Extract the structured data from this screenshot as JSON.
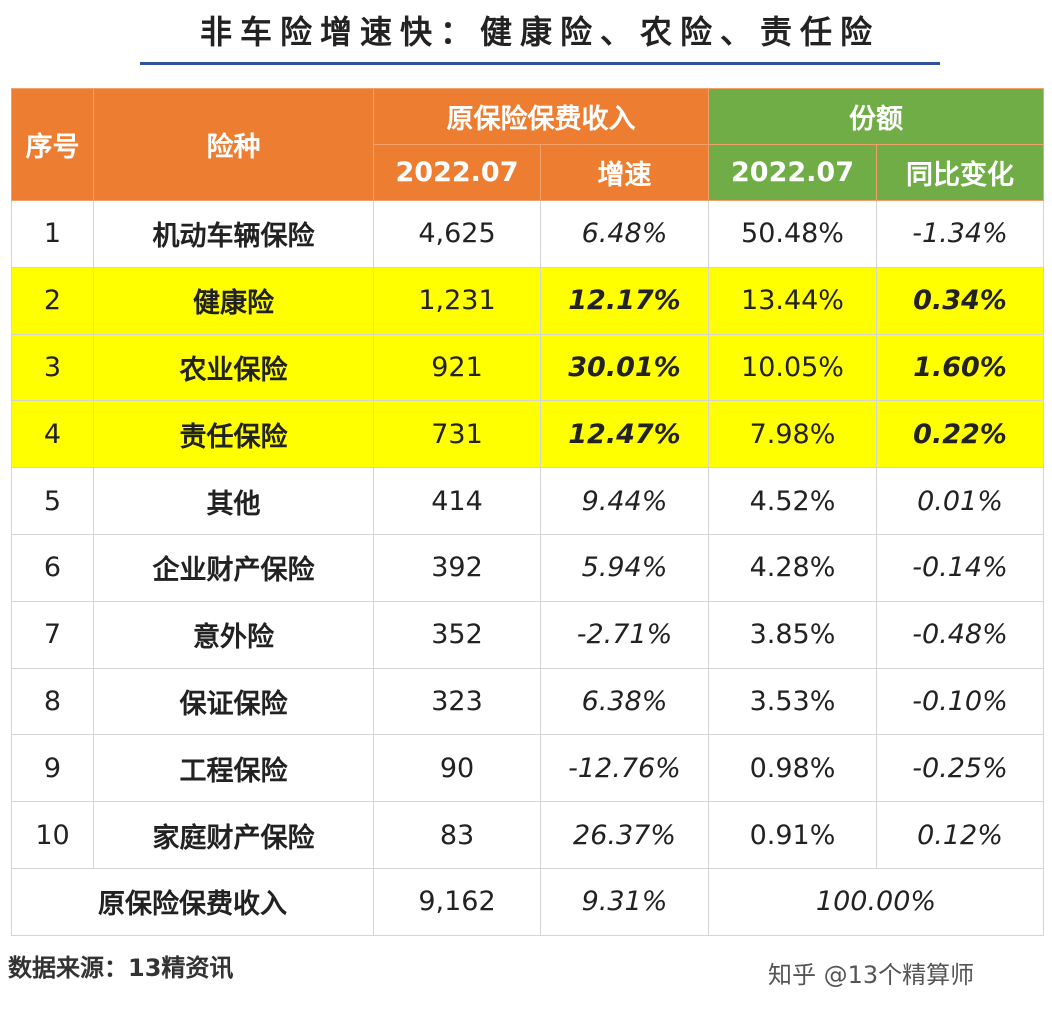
{
  "title": "非车险增速快：健康险、农险、责任险",
  "header": {
    "seq": "序号",
    "type": "险种",
    "premium_group": "原保险保费收入",
    "share_group": "份额",
    "premium_year": "2022.07",
    "growth": "增速",
    "share_year": "2022.07",
    "yoy_change": "同比变化"
  },
  "rows": [
    {
      "seq": "1",
      "name": "机动车辆保险",
      "premium": "4,625",
      "growth": "6.48%",
      "share": "50.48%",
      "change": "-1.34%"
    },
    {
      "seq": "2",
      "name": "健康险",
      "premium": "1,231",
      "growth": "12.17%",
      "share": "13.44%",
      "change": "0.34%"
    },
    {
      "seq": "3",
      "name": "农业保险",
      "premium": "921",
      "growth": "30.01%",
      "share": "10.05%",
      "change": "1.60%"
    },
    {
      "seq": "4",
      "name": "责任保险",
      "premium": "731",
      "growth": "12.47%",
      "share": "7.98%",
      "change": "0.22%"
    },
    {
      "seq": "5",
      "name": "其他",
      "premium": "414",
      "growth": "9.44%",
      "share": "4.52%",
      "change": "0.01%"
    },
    {
      "seq": "6",
      "name": "企业财产保险",
      "premium": "392",
      "growth": "5.94%",
      "share": "4.28%",
      "change": "-0.14%"
    },
    {
      "seq": "7",
      "name": "意外险",
      "premium": "352",
      "growth": "-2.71%",
      "share": "3.85%",
      "change": "-0.48%"
    },
    {
      "seq": "8",
      "name": "保证保险",
      "premium": "323",
      "growth": "6.38%",
      "share": "3.53%",
      "change": "-0.10%"
    },
    {
      "seq": "9",
      "name": "工程保险",
      "premium": "90",
      "growth": "-12.76%",
      "share": "0.98%",
      "change": "-0.25%"
    },
    {
      "seq": "10",
      "name": "家庭财产保险",
      "premium": "83",
      "growth": "26.37%",
      "share": "0.91%",
      "change": "0.12%"
    }
  ],
  "total": {
    "name": "原保险保费收入",
    "premium": "9,162",
    "growth": "9.31%",
    "share": "100.00%"
  },
  "source_note": "数据来源：13精资讯",
  "credit": "知乎 @13个精算师",
  "colors": {
    "header_orange": "#ed7d31",
    "header_green": "#70ad47",
    "highlight": "#ffff00",
    "title_rule": "#2e5597"
  }
}
